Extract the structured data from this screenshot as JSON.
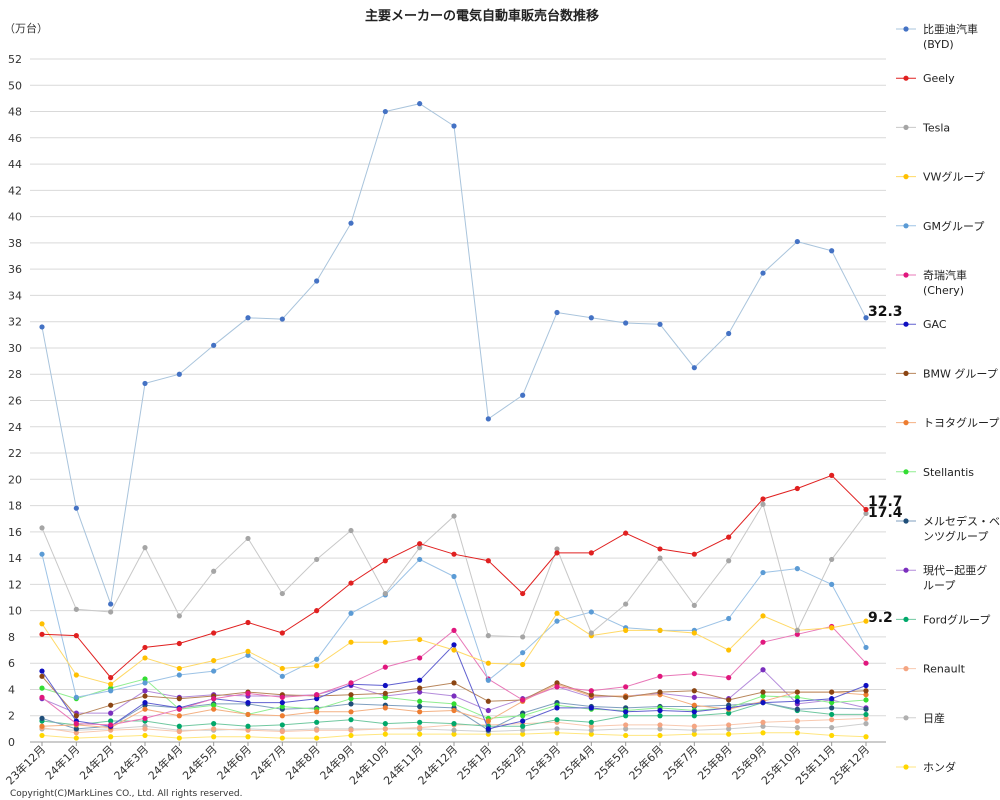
{
  "chart_data": {
    "type": "line",
    "title": "主要メーカーの電気自動車販売台数推移",
    "ylabel": "（万台）",
    "ylim": [
      0,
      52
    ],
    "yticks": [
      0,
      2,
      4,
      6,
      8,
      10,
      12,
      14,
      16,
      18,
      20,
      22,
      24,
      26,
      28,
      30,
      32,
      34,
      36,
      38,
      40,
      42,
      44,
      46,
      48,
      50,
      52
    ],
    "grid": true,
    "legend_position": "right",
    "categories": [
      "23年12月",
      "24年1月",
      "24年2月",
      "24年3月",
      "24年4月",
      "24年5月",
      "24年6月",
      "24年7月",
      "24年8月",
      "24年9月",
      "24年10月",
      "24年11月",
      "24年12月",
      "25年1月",
      "25年2月",
      "25年3月",
      "25年4月",
      "25年5月",
      "25年6月",
      "25年7月",
      "25年8月",
      "25年9月",
      "25年10月",
      "25年11月",
      "25年12月"
    ],
    "series": [
      {
        "name": [
          "比亜迪汽車",
          "(BYD)"
        ],
        "color": "#4472C4",
        "line_color": "#A9C4DC",
        "values": [
          31.6,
          17.8,
          10.5,
          27.3,
          28.0,
          30.2,
          32.3,
          32.2,
          35.1,
          39.5,
          48.0,
          48.6,
          46.9,
          24.6,
          26.4,
          32.7,
          32.3,
          31.9,
          31.8,
          28.5,
          31.1,
          35.7,
          38.1,
          37.4,
          32.3
        ]
      },
      {
        "name": [
          "Geely"
        ],
        "color": "#E02020",
        "line_color": "#E02020",
        "values": [
          8.2,
          8.1,
          4.9,
          7.2,
          7.5,
          8.3,
          9.1,
          8.3,
          10.0,
          12.1,
          13.8,
          15.1,
          14.3,
          13.8,
          11.3,
          14.4,
          14.4,
          15.9,
          14.7,
          14.3,
          15.6,
          18.5,
          19.3,
          20.3,
          17.7
        ]
      },
      {
        "name": [
          "Tesla"
        ],
        "color": "#A5A5A5",
        "line_color": "#C8C8C8",
        "values": [
          16.3,
          10.1,
          9.9,
          14.8,
          9.6,
          13.0,
          15.5,
          11.3,
          13.9,
          16.1,
          11.3,
          14.8,
          17.2,
          8.1,
          8.0,
          14.7,
          8.3,
          10.5,
          14.0,
          10.4,
          13.8,
          18.1,
          8.5,
          13.9,
          17.4
        ]
      },
      {
        "name": [
          "VWグループ"
        ],
        "color": "#FFC000",
        "line_color": "#FFD966",
        "values": [
          9.0,
          5.1,
          4.4,
          6.4,
          5.6,
          6.2,
          6.9,
          5.6,
          5.8,
          7.6,
          7.6,
          7.8,
          7.0,
          6.0,
          5.9,
          9.8,
          8.1,
          8.5,
          8.5,
          8.3,
          7.0,
          9.6,
          8.5,
          8.7,
          9.2
        ]
      },
      {
        "name": [
          "GMグループ"
        ],
        "color": "#5B9BD5",
        "line_color": "#9DC3E6",
        "values": [
          14.3,
          3.4,
          3.9,
          4.5,
          5.1,
          5.4,
          6.6,
          5.0,
          6.3,
          9.8,
          11.2,
          13.9,
          12.6,
          4.7,
          6.8,
          9.2,
          9.9,
          8.7,
          8.5,
          8.5,
          9.4,
          12.9,
          13.2,
          12.0,
          7.2
        ]
      },
      {
        "name": [
          "奇瑞汽車",
          "(Chery)"
        ],
        "color": "#E0177D",
        "line_color": "#E878B8",
        "values": [
          3.4,
          1.4,
          1.3,
          1.8,
          2.5,
          3.3,
          3.7,
          3.4,
          3.6,
          4.5,
          5.7,
          6.4,
          8.5,
          4.8,
          3.2,
          4.2,
          3.9,
          4.2,
          5.0,
          5.2,
          4.9,
          7.6,
          8.2,
          8.8,
          6.0
        ]
      },
      {
        "name": [
          "GAC"
        ],
        "color": "#1010C0",
        "line_color": "#6060D0",
        "values": [
          5.4,
          1.6,
          1.2,
          3.0,
          2.6,
          3.3,
          3.0,
          3.0,
          3.3,
          4.4,
          4.3,
          4.7,
          7.4,
          1.0,
          1.6,
          2.6,
          2.6,
          2.3,
          2.4,
          2.3,
          2.6,
          3.0,
          3.1,
          3.3,
          4.3
        ]
      },
      {
        "name": [
          "BMW グループ"
        ],
        "color": "#8B4513",
        "line_color": "#B8865B",
        "values": [
          5.0,
          2.0,
          2.8,
          3.5,
          3.3,
          3.5,
          3.8,
          3.6,
          3.5,
          3.6,
          3.7,
          4.1,
          4.5,
          3.1,
          3.2,
          4.5,
          3.6,
          3.4,
          3.8,
          3.9,
          3.2,
          3.8,
          3.8,
          3.8,
          3.9
        ]
      },
      {
        "name": [
          "トヨタグループ"
        ],
        "color": "#ED7D31",
        "line_color": "#F4B183",
        "values": [
          1.2,
          1.3,
          1.1,
          2.5,
          2.0,
          2.5,
          2.1,
          2.0,
          2.3,
          2.3,
          2.6,
          2.3,
          2.4,
          1.6,
          3.1,
          4.4,
          3.5,
          3.5,
          3.6,
          2.8,
          2.5,
          3.1,
          3.8,
          3.8,
          3.6
        ]
      },
      {
        "name": [
          "Stellantis"
        ],
        "color": "#33DD33",
        "line_color": "#90EE90",
        "values": [
          4.1,
          3.3,
          4.1,
          4.8,
          2.5,
          2.8,
          2.1,
          2.7,
          2.5,
          3.3,
          3.4,
          3.1,
          2.9,
          1.8,
          2.0,
          2.8,
          2.5,
          2.4,
          2.6,
          2.4,
          2.6,
          3.5,
          3.4,
          3.0,
          3.2
        ]
      },
      {
        "name": [
          "メルセデス・ベ",
          "ンツグループ"
        ],
        "color": "#1F4E79",
        "line_color": "#7F9FBF",
        "values": [
          1.8,
          1.0,
          1.2,
          2.8,
          2.6,
          2.9,
          2.9,
          2.5,
          2.6,
          2.9,
          2.8,
          2.7,
          2.6,
          0.9,
          2.2,
          3.0,
          2.7,
          2.6,
          2.7,
          2.7,
          2.8,
          3.0,
          2.5,
          2.6,
          2.5
        ]
      },
      {
        "name": [
          "現代−起亜グ",
          "ループ"
        ],
        "color": "#7B2FBE",
        "line_color": "#B48CDB",
        "values": [
          3.3,
          2.2,
          2.2,
          3.9,
          3.4,
          3.6,
          3.5,
          3.5,
          3.6,
          4.3,
          3.5,
          3.8,
          3.5,
          2.4,
          3.3,
          4.2,
          3.4,
          3.5,
          3.7,
          3.4,
          3.3,
          5.5,
          2.9,
          3.2,
          2.6
        ]
      },
      {
        "name": [
          "Fordグループ"
        ],
        "color": "#00A86B",
        "line_color": "#70C8A0",
        "values": [
          1.6,
          1.3,
          1.6,
          1.6,
          1.2,
          1.4,
          1.2,
          1.3,
          1.5,
          1.7,
          1.4,
          1.5,
          1.4,
          1.2,
          1.2,
          1.7,
          1.5,
          2.0,
          2.0,
          2.0,
          2.2,
          3.0,
          2.4,
          2.1,
          2.1
        ]
      },
      {
        "name": [
          "Renault"
        ],
        "color": "#F4A582",
        "line_color": "#F8C9B0",
        "values": [
          1.1,
          0.7,
          0.9,
          1.0,
          0.8,
          1.0,
          0.9,
          0.8,
          0.9,
          0.9,
          1.0,
          1.1,
          1.3,
          1.3,
          1.4,
          1.5,
          1.2,
          1.3,
          1.3,
          1.2,
          1.3,
          1.5,
          1.6,
          1.7,
          1.8
        ]
      },
      {
        "name": [
          "日産"
        ],
        "color": "#B0B0B0",
        "line_color": "#D0D0D0",
        "values": [
          1.0,
          0.9,
          1.0,
          1.2,
          0.9,
          0.9,
          1.0,
          0.9,
          1.0,
          1.0,
          1.0,
          1.0,
          0.9,
          0.8,
          0.9,
          1.0,
          0.9,
          1.0,
          1.0,
          0.9,
          1.0,
          1.2,
          1.1,
          1.1,
          1.4
        ]
      },
      {
        "name": [
          "ホンダ"
        ],
        "color": "#FFD700",
        "line_color": "#FFE680",
        "values": [
          0.5,
          0.3,
          0.4,
          0.5,
          0.3,
          0.4,
          0.4,
          0.3,
          0.3,
          0.5,
          0.6,
          0.6,
          0.6,
          0.6,
          0.6,
          0.7,
          0.6,
          0.5,
          0.5,
          0.6,
          0.6,
          0.7,
          0.7,
          0.5,
          0.4
        ]
      }
    ],
    "annotations": [
      {
        "text": "32.3",
        "category": "25年12月",
        "value": 32.3
      },
      {
        "text": "17.7",
        "category": "25年12月",
        "value": 17.7
      },
      {
        "text": "17.4",
        "category": "25年12月",
        "value": 17.4
      },
      {
        "text": "9.2",
        "category": "25年12月",
        "value": 9.2
      }
    ]
  },
  "copyright": "Copyright(C)MarkLines CO., Ltd. All rights reserved."
}
